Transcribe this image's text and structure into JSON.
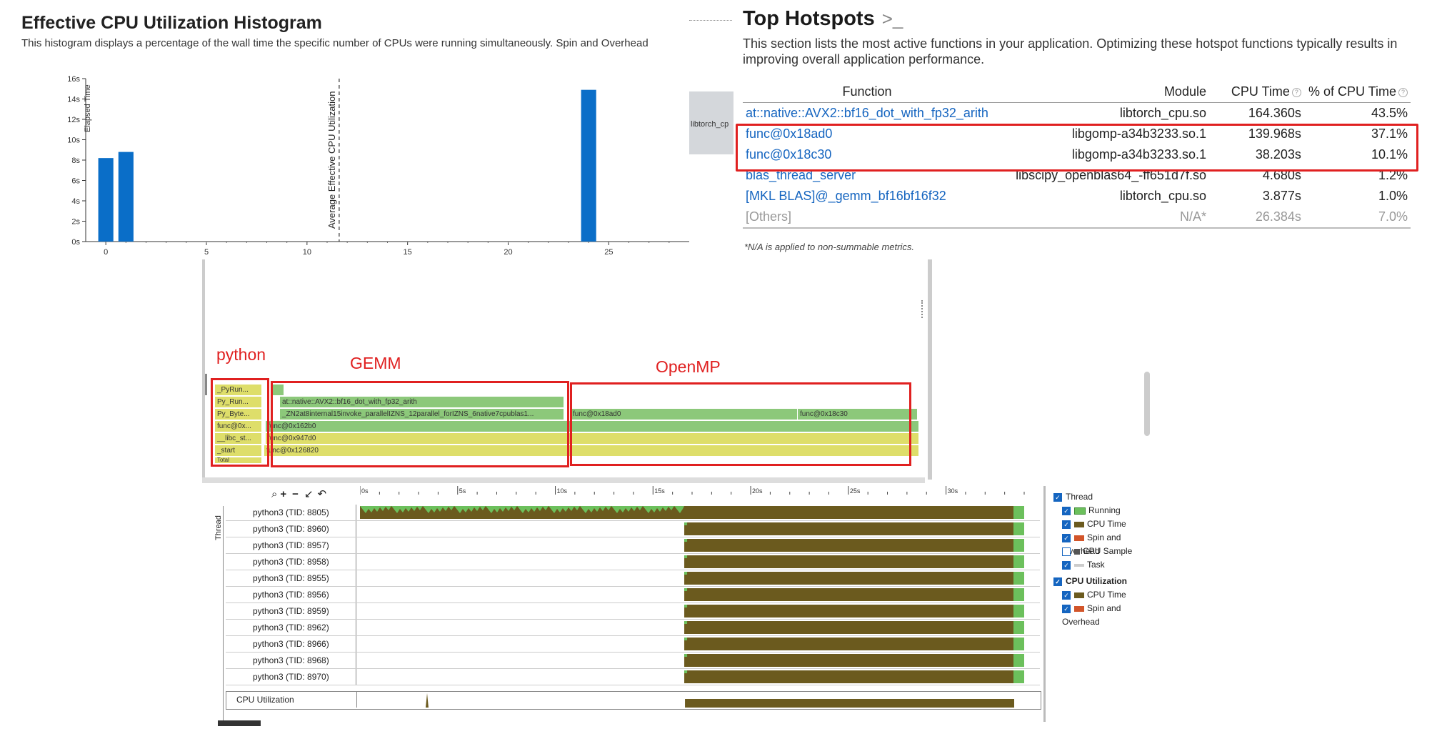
{
  "histogram": {
    "title": "Effective CPU Utilization Histogram",
    "description": "This histogram displays a percentage of the wall time the specific number of CPUs were running simultaneously. Spin and Overhead",
    "ylabel": "Elapsed Time",
    "avg_label": "Average Effective CPU Utilization",
    "yticks": [
      "0s",
      "2s",
      "4s",
      "6s",
      "8s",
      "10s",
      "12s",
      "14s",
      "16s"
    ],
    "xticks": [
      "0",
      "5",
      "10",
      "15",
      "20",
      "25"
    ]
  },
  "chart_data": {
    "type": "bar",
    "x": [
      0,
      1,
      24
    ],
    "values": [
      8.2,
      8.8,
      14.9
    ],
    "xlim": [
      -1,
      29
    ],
    "ylim": [
      0,
      16
    ],
    "avg_line_x": 11.6,
    "title": "Effective CPU Utilization Histogram",
    "ylabel": "Elapsed Time",
    "bar_color": "#0a6ec8"
  },
  "hotspots": {
    "title": "Top Hotspots",
    "prompt_icon": ">_",
    "description": "This section lists the most active functions in your application. Optimizing these hotspot functions typically results in improving overall application performance.",
    "columns": [
      "Function",
      "Module",
      "CPU Time",
      "% of CPU Time"
    ],
    "rows": [
      {
        "function": "at::native::AVX2::bf16_dot_with_fp32_arith",
        "module": "libtorch_cpu.so",
        "cpu_time": "164.360s",
        "pct": "43.5%"
      },
      {
        "function": "func@0x18ad0",
        "module": "libgomp-a34b3233.so.1",
        "cpu_time": "139.968s",
        "pct": "37.1%"
      },
      {
        "function": "func@0x18c30",
        "module": "libgomp-a34b3233.so.1",
        "cpu_time": "38.203s",
        "pct": "10.1%"
      },
      {
        "function": "blas_thread_server",
        "module": "libscipy_openblas64_-ff651d7f.so",
        "cpu_time": "4.680s",
        "pct": "1.2%"
      },
      {
        "function": "[MKL BLAS]@_gemm_bf16bf16f32",
        "module": "libtorch_cpu.so",
        "cpu_time": "3.877s",
        "pct": "1.0%"
      },
      {
        "function": "[Others]",
        "module": "N/A*",
        "cpu_time": "26.384s",
        "pct": "7.0%"
      }
    ],
    "note": "*N/A is applied to non-summable metrics.",
    "fragment_label": "libtorch_cp"
  },
  "flame": {
    "annotations": {
      "python": "python",
      "gemm": "GEMM",
      "openmp": "OpenMP"
    },
    "left_labels": [
      "_PyRun...",
      "Py_Run...",
      "Py_Byte...",
      "func@0x...",
      "__libc_st...",
      "_start",
      "Total"
    ],
    "bars": {
      "avx": "at::native::AVX2::bf16_dot_with_fp32_arith",
      "invoke": "_ZN2at8internal15invoke_parallelIZNS_12parallel_forIZNS_6native7cpublas1...",
      "f18ad0": "func@0x18ad0",
      "f18c30": "func@0x18c30",
      "f162b0": "func@0x162b0",
      "f947d0": "func@0x947d0",
      "f126820": "func@0x126820"
    }
  },
  "timeline": {
    "axis_label": "Thread",
    "ticks": [
      "0s",
      "5s",
      "10s",
      "15s",
      "20s",
      "25s",
      "30s"
    ],
    "threads": [
      "python3 (TID: 8805)",
      "python3 (TID: 8960)",
      "python3 (TID: 8957)",
      "python3 (TID: 8958)",
      "python3 (TID: 8955)",
      "python3 (TID: 8956)",
      "python3 (TID: 8959)",
      "python3 (TID: 8962)",
      "python3 (TID: 8966)",
      "python3 (TID: 8968)",
      "python3 (TID: 8970)"
    ],
    "cpu_util_label": "CPU Utilization",
    "legend": {
      "thread": "Thread",
      "running": "Running",
      "cpu_time": "CPU Time",
      "spin": "Spin and Overhead",
      "cpu_sample": "CPU Sample",
      "task": "Task",
      "cpu_util": "CPU Utilization",
      "cpu_time2": "CPU Time",
      "spin2": "Spin and Overhead"
    },
    "colors": {
      "cpu": "#6b5a1e",
      "running": "#6cc05c"
    }
  }
}
